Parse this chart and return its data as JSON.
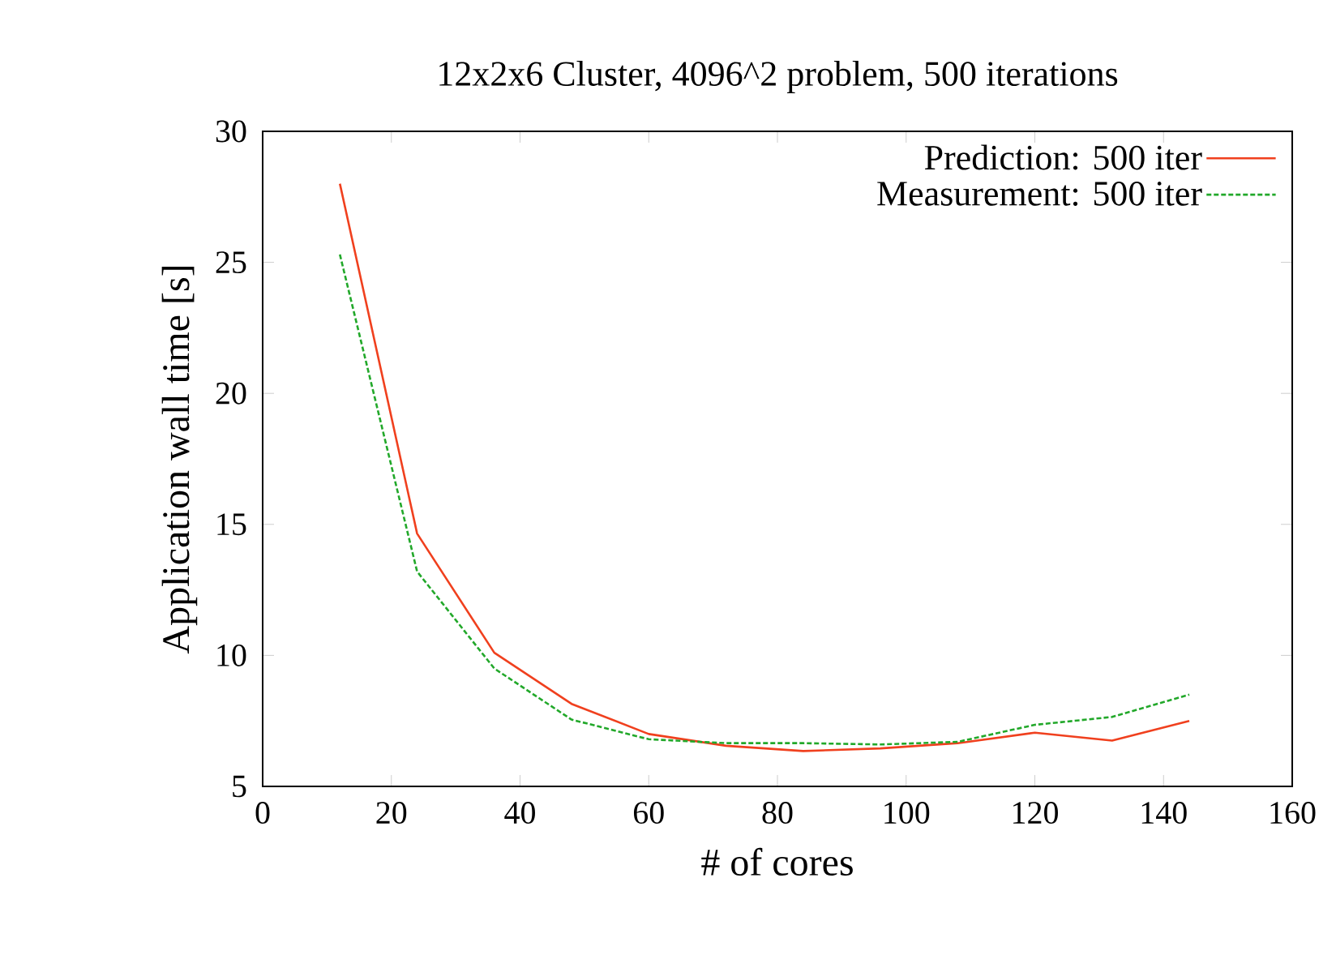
{
  "chart_data": {
    "type": "line",
    "title": "12x2x6 Cluster, 4096^2 problem, 500 iterations",
    "xlabel": "# of cores",
    "ylabel": "Application wall time [s]",
    "x": [
      12,
      24,
      36,
      48,
      60,
      72,
      84,
      96,
      108,
      120,
      132,
      144
    ],
    "series": [
      {
        "name": "Prediction:  500 iter",
        "color": "#f0401e",
        "line_style": "solid",
        "values": [
          28.0,
          14.65,
          10.1,
          8.15,
          7.0,
          6.55,
          6.35,
          6.45,
          6.65,
          7.05,
          6.75,
          7.5
        ]
      },
      {
        "name": "Measurement: 500 iter",
        "color": "#22a82a",
        "line_style": "dashed",
        "values": [
          25.3,
          13.2,
          9.5,
          7.55,
          6.8,
          6.65,
          6.65,
          6.6,
          6.7,
          7.35,
          7.65,
          8.5
        ]
      }
    ],
    "xlim": [
      0,
      160
    ],
    "ylim": [
      5,
      30
    ],
    "xticks": [
      0,
      20,
      40,
      60,
      80,
      100,
      120,
      140,
      160
    ],
    "yticks": [
      5,
      10,
      15,
      20,
      25,
      30
    ],
    "grid": false,
    "legend": "top right",
    "marker": "none"
  }
}
